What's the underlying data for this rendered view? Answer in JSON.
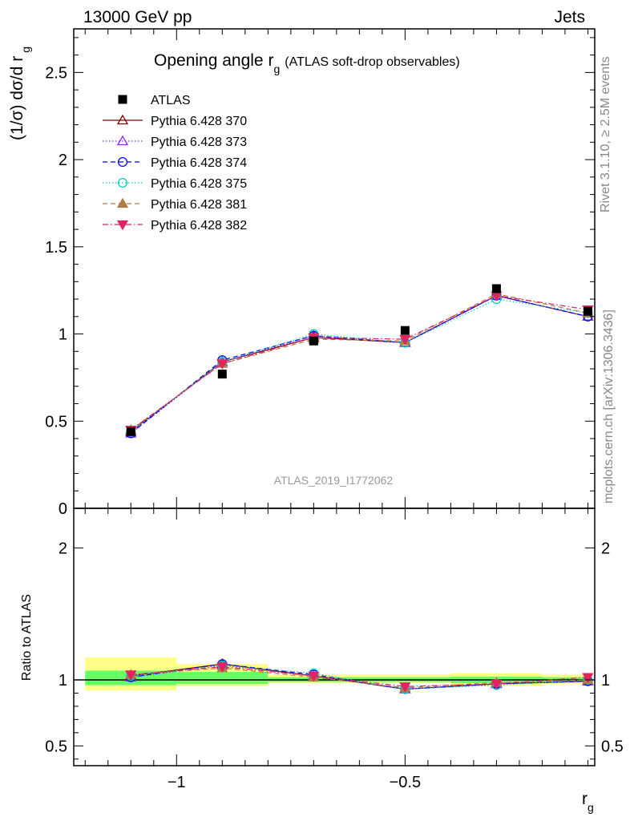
{
  "header": {
    "left": "13000 GeV pp",
    "right": "Jets"
  },
  "side_labels": {
    "rivet": "Rivet 3.1.10, ≥ 2.5M events",
    "mcplots": "mcplots.cern.ch [arXiv:1306.3436]"
  },
  "watermark": "ATLAS_2019_I1772062",
  "colors": {
    "atlas": "#000000",
    "p370": "#800000",
    "p373": "#8a2be2",
    "p374": "#0000ff",
    "p375": "#00cdb8",
    "p381": "#b07c46",
    "p382": "#e0245e",
    "band_inner": "#66ff66",
    "band_outer": "#ffff88"
  },
  "chart_data": [
    {
      "id": "main",
      "type": "line",
      "title": "Opening angle r",
      "title_sub": "g",
      "title_note": "(ATLAS soft-drop observables)",
      "ylabel": "(1/σ) dσ/d r",
      "ylabel_sub": "g",
      "xlim": [
        -1.225,
        -0.085
      ],
      "ylim": [
        0,
        2.75
      ],
      "yticks": [
        0,
        0.5,
        1,
        1.5,
        2,
        2.5
      ],
      "ytick_labels": [
        "0",
        "0.5",
        "1",
        "1.5",
        "2",
        "2.5"
      ],
      "x": [
        -1.1,
        -0.9,
        -0.7,
        -0.5,
        -0.3,
        -0.1
      ],
      "data": {
        "name": "ATLAS",
        "values": [
          0.44,
          0.77,
          0.96,
          1.02,
          1.26,
          1.13
        ]
      },
      "series": [
        {
          "name": "Pythia 6.428 370",
          "key": "p370",
          "style": "solid",
          "marker": "triangle-open",
          "values": [
            0.44,
            0.84,
            0.98,
            0.95,
            1.22,
            1.1
          ]
        },
        {
          "name": "Pythia 6.428 373",
          "key": "p373",
          "style": "dotted",
          "marker": "triangle-open",
          "values": [
            0.43,
            0.84,
            0.99,
            0.95,
            1.22,
            1.1
          ]
        },
        {
          "name": "Pythia 6.428 374",
          "key": "p374",
          "style": "dashed",
          "marker": "circle-open",
          "values": [
            0.43,
            0.85,
            0.99,
            0.95,
            1.22,
            1.1
          ]
        },
        {
          "name": "Pythia 6.428 375",
          "key": "p375",
          "style": "dotted",
          "marker": "circle-open",
          "values": [
            0.44,
            0.84,
            1.0,
            0.95,
            1.2,
            1.12
          ]
        },
        {
          "name": "Pythia 6.428 381",
          "key": "p381",
          "style": "dashed",
          "marker": "triangle-filled",
          "values": [
            0.45,
            0.83,
            0.97,
            0.96,
            1.23,
            1.12
          ]
        },
        {
          "name": "Pythia 6.428 382",
          "key": "p382",
          "style": "dashdot",
          "marker": "triangle-down-filled",
          "values": [
            0.45,
            0.83,
            0.98,
            0.97,
            1.22,
            1.14
          ]
        }
      ],
      "legend_position": "top-left"
    },
    {
      "id": "ratio",
      "type": "line",
      "ylabel": "Ratio to ATLAS",
      "xlabel": "r",
      "xlabel_sub": "g",
      "xlim": [
        -1.225,
        -0.085
      ],
      "ylim": [
        0.35,
        2.3
      ],
      "yticks": [
        0.5,
        1,
        2
      ],
      "ytick_labels": [
        "0.5",
        "1",
        "2"
      ],
      "xticks": [
        -1,
        -0.5
      ],
      "xtick_labels": [
        "−1",
        "−0.5"
      ],
      "x": [
        -1.1,
        -0.9,
        -0.7,
        -0.5,
        -0.3,
        -0.1
      ],
      "bands": {
        "edges": [
          -1.2,
          -1.0,
          -0.8,
          -0.6,
          -0.4,
          -0.2,
          -0.1
        ],
        "inner": [
          [
            0.96,
            1.07
          ],
          [
            0.97,
            1.06
          ],
          [
            0.985,
            1.02
          ],
          [
            0.985,
            1.02
          ],
          [
            0.975,
            1.025
          ],
          [
            0.985,
            1.02
          ],
          [
            0.985,
            1.02
          ]
        ],
        "outer": [
          [
            0.92,
            1.17
          ],
          [
            0.95,
            1.12
          ],
          [
            0.975,
            1.04
          ],
          [
            0.975,
            1.04
          ],
          [
            0.955,
            1.05
          ],
          [
            0.97,
            1.04
          ],
          [
            0.97,
            1.04
          ]
        ]
      },
      "series": [
        {
          "name": "Pythia 6.428 370",
          "key": "p370",
          "style": "solid",
          "marker": "triangle-open",
          "values": [
            1.03,
            1.12,
            1.03,
            0.93,
            0.97,
            0.99
          ]
        },
        {
          "name": "Pythia 6.428 373",
          "key": "p373",
          "style": "dotted",
          "marker": "triangle-open",
          "values": [
            1.02,
            1.11,
            1.03,
            0.93,
            0.97,
            0.99
          ]
        },
        {
          "name": "Pythia 6.428 374",
          "key": "p374",
          "style": "dashed",
          "marker": "circle-open",
          "values": [
            1.02,
            1.12,
            1.04,
            0.93,
            0.97,
            0.99
          ]
        },
        {
          "name": "Pythia 6.428 375",
          "key": "p375",
          "style": "dotted",
          "marker": "circle-open",
          "values": [
            1.03,
            1.11,
            1.05,
            0.93,
            0.96,
            1.0
          ]
        },
        {
          "name": "Pythia 6.428 381",
          "key": "p381",
          "style": "dashed",
          "marker": "triangle-filled",
          "values": [
            1.04,
            1.09,
            1.02,
            0.94,
            0.98,
            1.0
          ]
        },
        {
          "name": "Pythia 6.428 382",
          "key": "p382",
          "style": "dashdot",
          "marker": "triangle-down-filled",
          "values": [
            1.04,
            1.1,
            1.03,
            0.95,
            0.97,
            1.02
          ]
        }
      ]
    }
  ]
}
